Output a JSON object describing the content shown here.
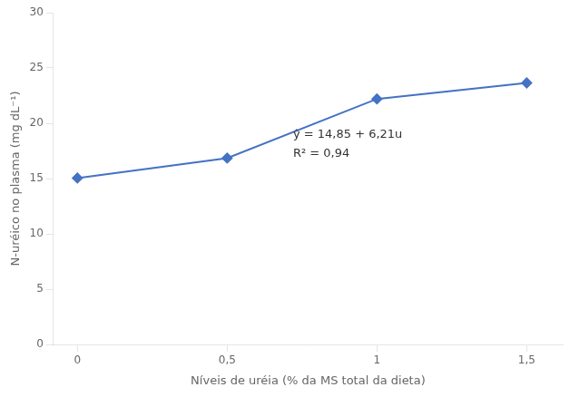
{
  "chart_data": {
    "type": "line",
    "x": [
      0,
      0.5,
      1.0,
      1.5
    ],
    "values": [
      15.05,
      16.85,
      22.2,
      23.65
    ],
    "color": "#4472C4",
    "marker": "diamond",
    "xlabel": "Níveis de uréia (% da MS total da dieta)",
    "ylabel": "N-uréico no plasma (mg dL⁻¹)",
    "xlim": [
      -0.08,
      1.62
    ],
    "ylim": [
      0,
      30
    ],
    "xticks": [
      0,
      {
        "value": 0.5,
        "label": "0,5"
      },
      1,
      {
        "value": 1.5,
        "label": "1,5"
      }
    ],
    "yticks": [
      0,
      5,
      10,
      15,
      20,
      25,
      30
    ],
    "annotations": [
      {
        "x": 0.72,
        "y": 19.5,
        "text": [
          "ŷ = 14,85 + 6,21u",
          "R² = 0,94"
        ]
      }
    ],
    "grid": false,
    "legend": false
  }
}
